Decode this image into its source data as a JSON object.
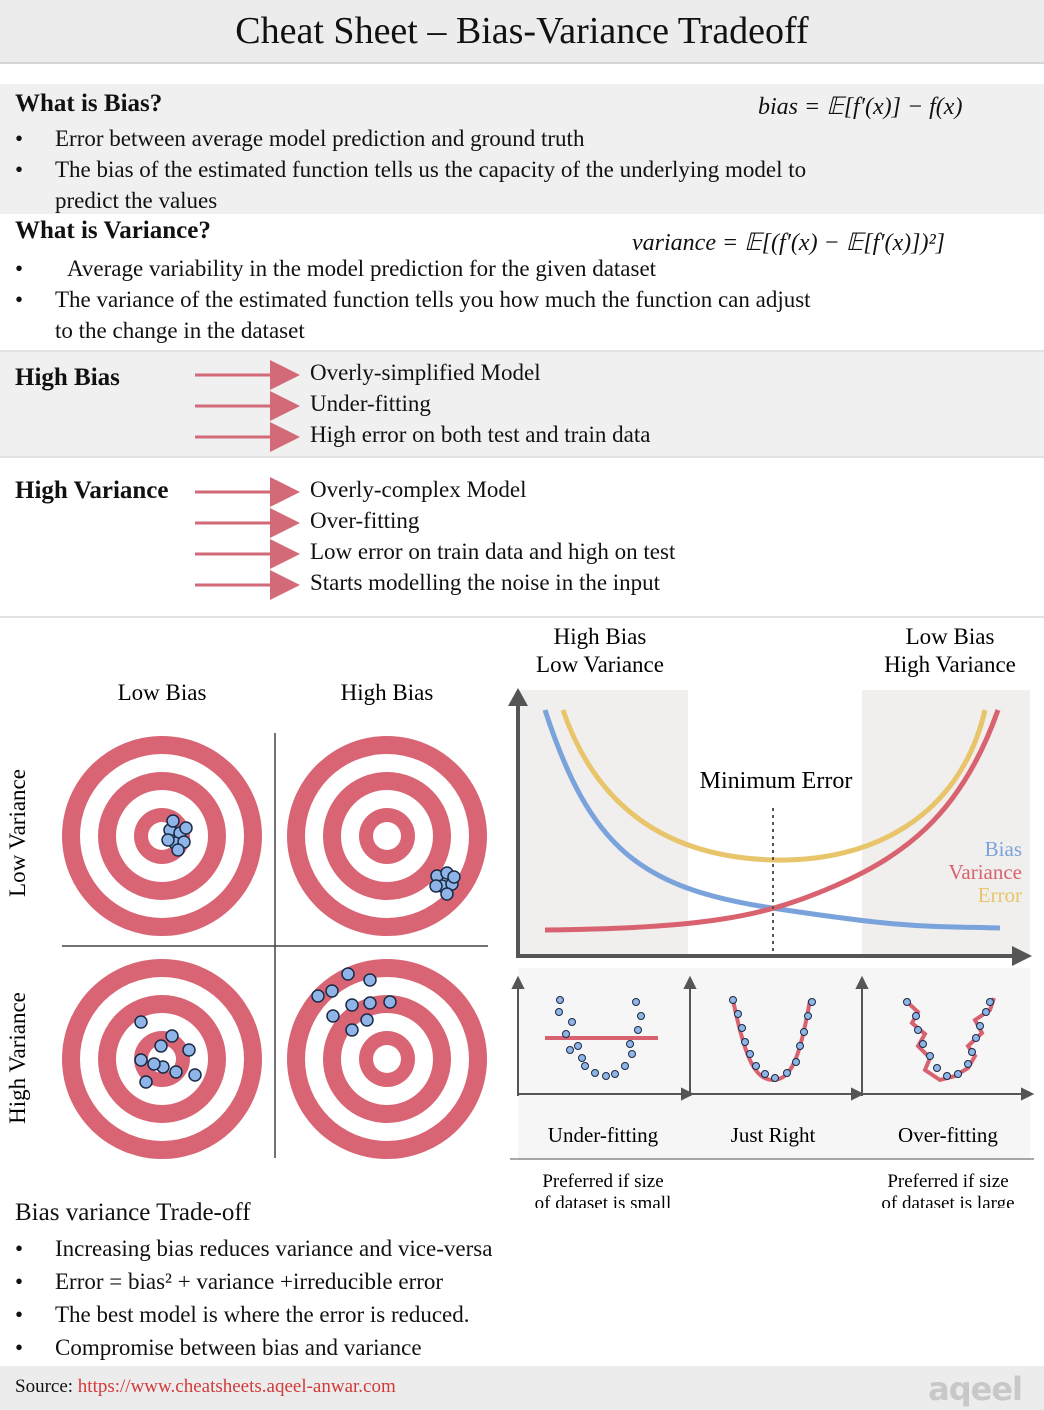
{
  "title": "Cheat Sheet – Bias-Variance Tradeoff",
  "bias_section": {
    "heading": "What is Bias?",
    "formula": "bias = 𝔼[f′(x)] − f(x)",
    "bullets": [
      "Error between average model prediction and ground truth",
      "The bias of the estimated function tells us the capacity of the underlying model to",
      "predict the values"
    ]
  },
  "variance_section": {
    "heading": "What is Variance?",
    "formula": "variance = 𝔼[(f′(x) − 𝔼[f′(x)])²]",
    "bullets": [
      "Average variability in the model prediction for the given dataset",
      "The variance of the estimated function tells you how much the function can adjust",
      "to the change in the dataset"
    ]
  },
  "high_bias": {
    "label": "High Bias",
    "items": [
      "Overly-simplified Model",
      "Under-fitting",
      "High error on both test and train data"
    ]
  },
  "high_variance": {
    "label": "High Variance",
    "items": [
      "Overly-complex Model",
      "Over-fitting",
      "Low error on train data and high on test",
      "Starts modelling the noise in the input"
    ]
  },
  "targets": {
    "col_low_bias": "Low Bias",
    "col_high_bias": "High Bias",
    "row_low_variance": "Low Variance",
    "row_high_variance": "High Variance"
  },
  "tradeoff_chart": {
    "left_label_1": "High Bias",
    "left_label_2": "Low Variance",
    "right_label_1": "Low Bias",
    "right_label_2": "High Variance",
    "min_error": "Minimum Error",
    "legend": [
      "Bias",
      "Variance",
      "Error"
    ],
    "colors": {
      "bias": "#7aa3db",
      "variance": "#d8626f",
      "error": "#e8c46a",
      "target": "#d96574"
    }
  },
  "fit_panels": {
    "under": "Under-fitting",
    "just": "Just Right",
    "over": "Over-fitting",
    "pref_small_1": "Preferred if size",
    "pref_small_2": "of dataset is small",
    "pref_large_1": "Preferred if size",
    "pref_large_2": "of dataset is large"
  },
  "tradeoff_section": {
    "heading": "Bias variance Trade-off",
    "bullets": [
      "Increasing bias reduces variance and vice-versa",
      "Error = bias² + variance +irreducible error",
      "The best model is where the error is reduced.",
      "Compromise between bias and variance"
    ]
  },
  "footer": {
    "source_label": "Source:",
    "url": "https://www.cheatsheets.aqeel-anwar.com",
    "logo_text": "aqeel"
  }
}
